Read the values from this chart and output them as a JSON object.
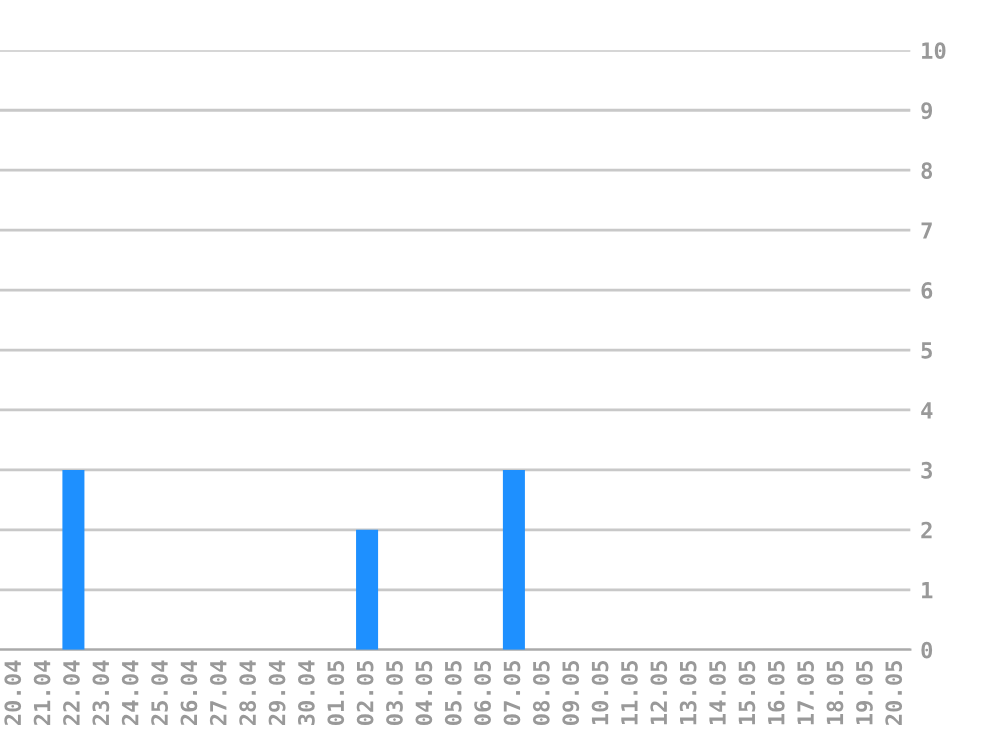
{
  "chart_data": {
    "type": "bar",
    "categories": [
      "20.04",
      "21.04",
      "22.04",
      "23.04",
      "24.04",
      "25.04",
      "26.04",
      "27.04",
      "28.04",
      "29.04",
      "30.04",
      "01.05",
      "02.05",
      "03.05",
      "04.05",
      "05.05",
      "06.05",
      "07.05",
      "08.05",
      "09.05",
      "10.05",
      "11.05",
      "12.05",
      "13.05",
      "14.05",
      "15.05",
      "16.05",
      "17.05",
      "18.05",
      "19.05",
      "20.05"
    ],
    "values": [
      0,
      0,
      3,
      0,
      0,
      0,
      0,
      0,
      0,
      0,
      0,
      0,
      2,
      0,
      0,
      0,
      0,
      3,
      0,
      0,
      0,
      0,
      0,
      0,
      0,
      0,
      0,
      0,
      0,
      0,
      0
    ],
    "color": "#1e90ff",
    "ylim": [
      0,
      10
    ],
    "yticks": [
      0,
      1,
      2,
      3,
      4,
      5,
      6,
      7,
      8,
      9,
      10
    ],
    "grid": "y",
    "legend": false
  }
}
